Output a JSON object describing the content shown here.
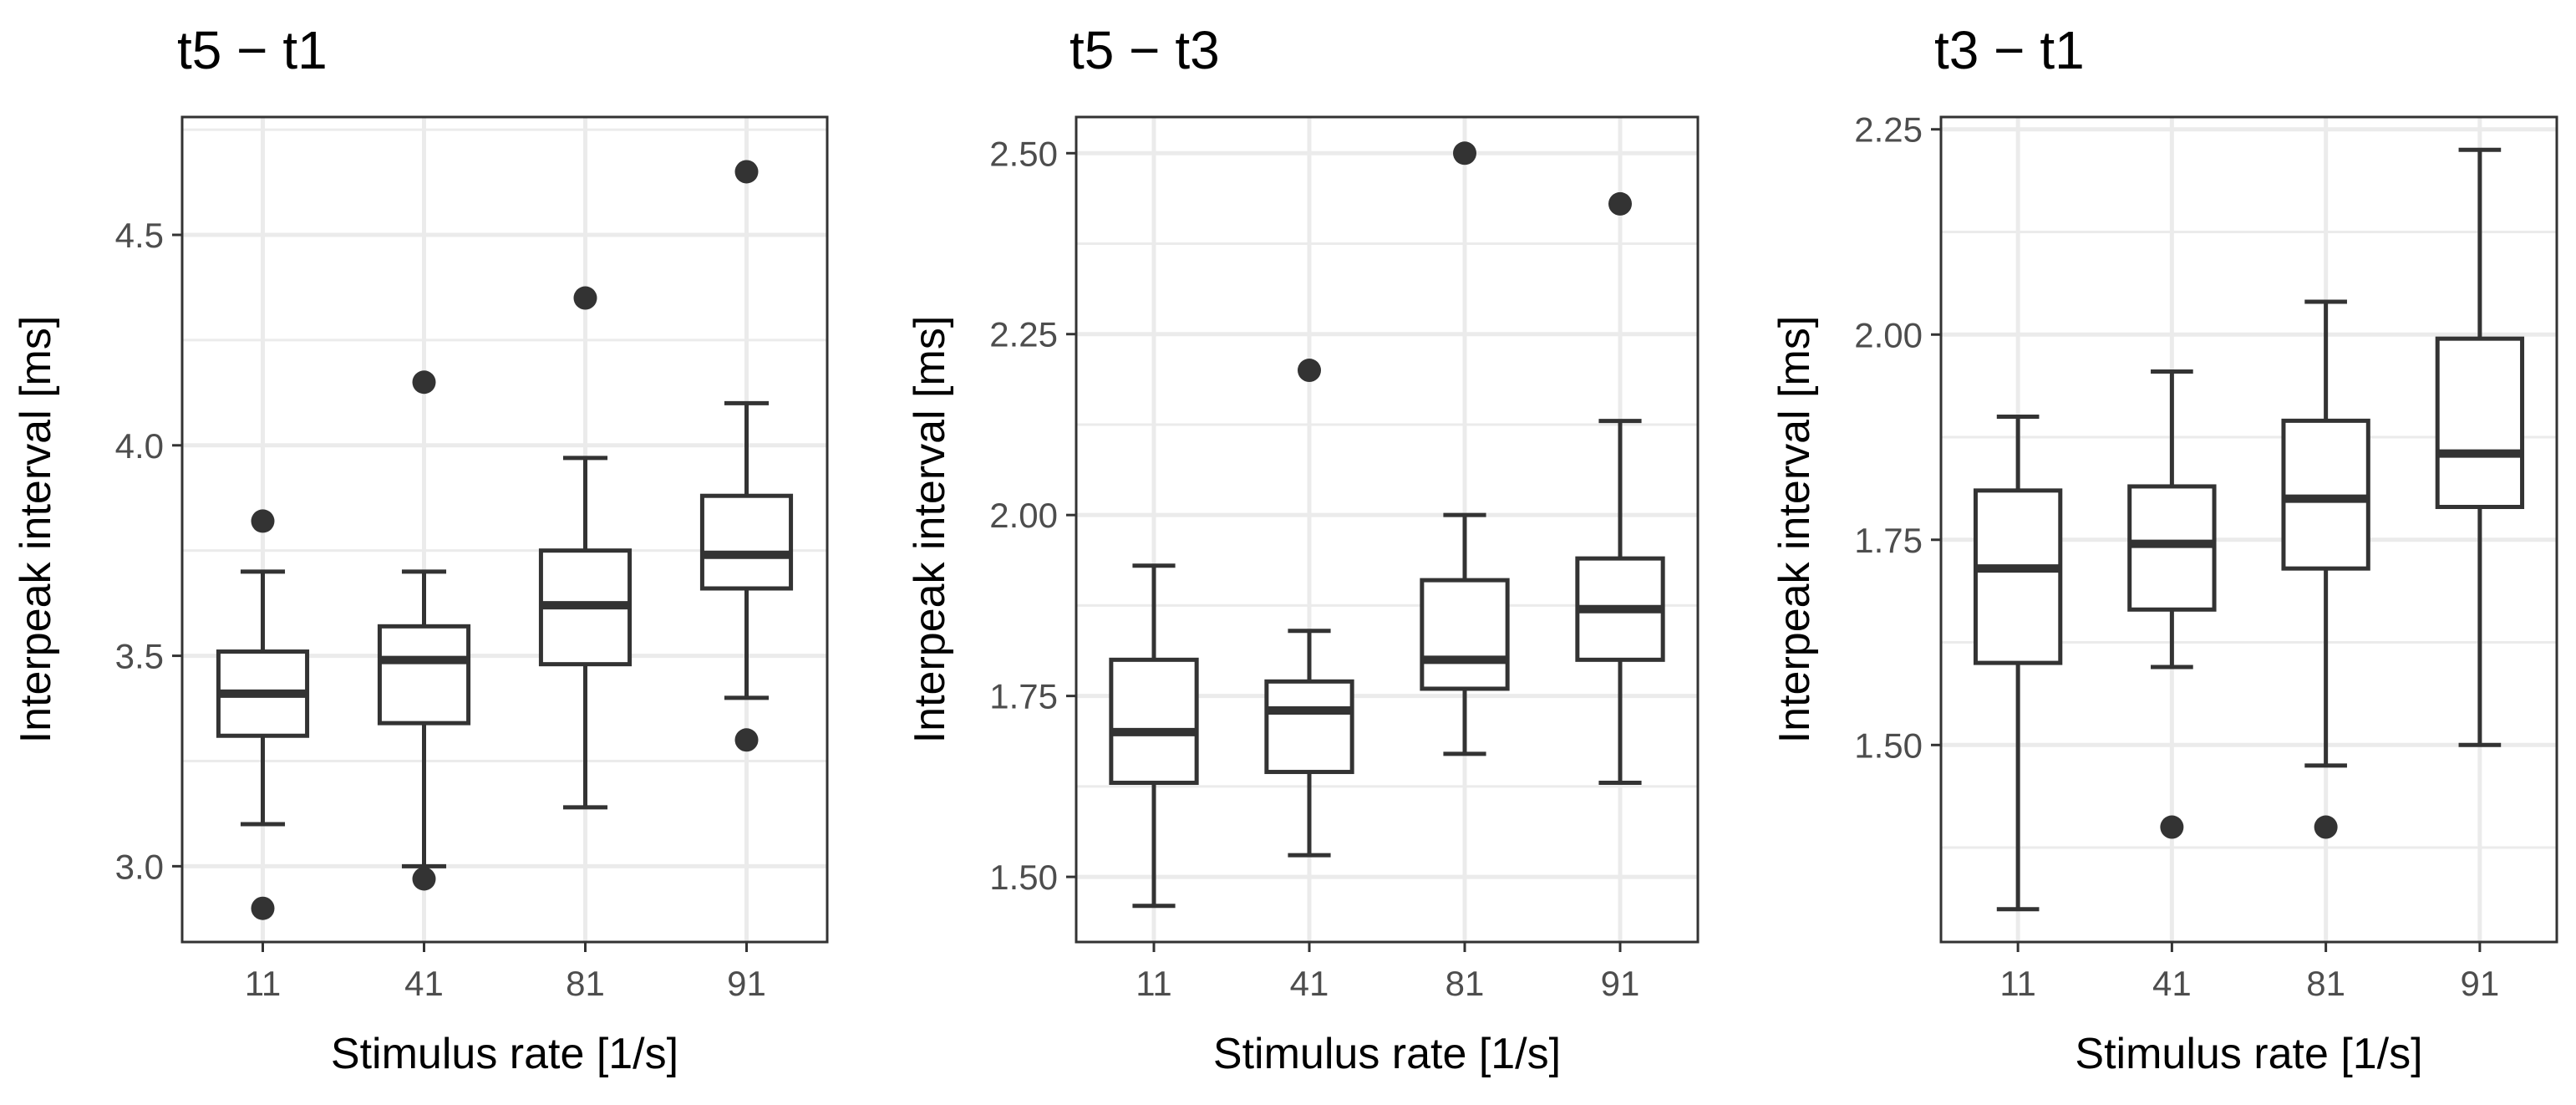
{
  "colors": {
    "background": "#ffffff",
    "panel_border": "#333333",
    "grid": "#ebebeb",
    "box_stroke": "#333333",
    "outlier": "#333333",
    "tick_text": "#4d4d4d",
    "title_text": "#000000"
  },
  "chart_data": [
    {
      "type": "boxplot",
      "title": "t5 − t1",
      "xlabel": "Stimulus rate [1/s]",
      "ylabel": "Interpeak interval [ms]",
      "categories": [
        "11",
        "41",
        "81",
        "91"
      ],
      "ylim": [
        2.82,
        4.78
      ],
      "yticks": [
        3.0,
        3.5,
        4.0,
        4.5
      ],
      "ytick_labels": [
        "3.0",
        "3.5",
        "4.0",
        "4.5"
      ],
      "grid": true,
      "boxes": [
        {
          "category": "11",
          "whisker_low": 3.1,
          "q1": 3.31,
          "median": 3.41,
          "q3": 3.51,
          "whisker_high": 3.7,
          "outliers": [
            3.82,
            2.9
          ]
        },
        {
          "category": "41",
          "whisker_low": 3.0,
          "q1": 3.34,
          "median": 3.49,
          "q3": 3.57,
          "whisker_high": 3.7,
          "outliers": [
            4.15,
            2.97
          ]
        },
        {
          "category": "81",
          "whisker_low": 3.14,
          "q1": 3.48,
          "median": 3.62,
          "q3": 3.75,
          "whisker_high": 3.97,
          "outliers": [
            4.35
          ]
        },
        {
          "category": "91",
          "whisker_low": 3.4,
          "q1": 3.66,
          "median": 3.74,
          "q3": 3.88,
          "whisker_high": 4.1,
          "outliers": [
            4.65,
            3.3
          ]
        }
      ]
    },
    {
      "type": "boxplot",
      "title": "t5 − t3",
      "xlabel": "Stimulus rate [1/s]",
      "ylabel": "Interpeak interval [ms]",
      "categories": [
        "11",
        "41",
        "81",
        "91"
      ],
      "ylim": [
        1.41,
        2.55
      ],
      "yticks": [
        1.5,
        1.75,
        2.0,
        2.25,
        2.5
      ],
      "ytick_labels": [
        "1.50",
        "1.75",
        "2.00",
        "2.25",
        "2.50"
      ],
      "grid": true,
      "boxes": [
        {
          "category": "11",
          "whisker_low": 1.46,
          "q1": 1.63,
          "median": 1.7,
          "q3": 1.8,
          "whisker_high": 1.93,
          "outliers": []
        },
        {
          "category": "41",
          "whisker_low": 1.53,
          "q1": 1.645,
          "median": 1.73,
          "q3": 1.77,
          "whisker_high": 1.84,
          "outliers": [
            2.2
          ]
        },
        {
          "category": "81",
          "whisker_low": 1.67,
          "q1": 1.76,
          "median": 1.8,
          "q3": 1.91,
          "whisker_high": 2.0,
          "outliers": [
            2.5
          ]
        },
        {
          "category": "91",
          "whisker_low": 1.63,
          "q1": 1.8,
          "median": 1.87,
          "q3": 1.94,
          "whisker_high": 2.13,
          "outliers": [
            2.43
          ]
        }
      ]
    },
    {
      "type": "boxplot",
      "title": "t3 − t1",
      "xlabel": "Stimulus rate [1/s]",
      "ylabel": "Interpeak interval [ms]",
      "categories": [
        "11",
        "41",
        "81",
        "91"
      ],
      "ylim": [
        1.26,
        2.265
      ],
      "yticks": [
        1.5,
        1.75,
        2.0,
        2.25
      ],
      "ytick_labels": [
        "1.50",
        "1.75",
        "2.00",
        "2.25"
      ],
      "grid": true,
      "boxes": [
        {
          "category": "11",
          "whisker_low": 1.3,
          "q1": 1.6,
          "median": 1.715,
          "q3": 1.81,
          "whisker_high": 1.9,
          "outliers": []
        },
        {
          "category": "41",
          "whisker_low": 1.595,
          "q1": 1.665,
          "median": 1.745,
          "q3": 1.815,
          "whisker_high": 1.955,
          "outliers": [
            1.4
          ]
        },
        {
          "category": "81",
          "whisker_low": 1.475,
          "q1": 1.715,
          "median": 1.8,
          "q3": 1.895,
          "whisker_high": 2.04,
          "outliers": [
            1.4
          ]
        },
        {
          "category": "91",
          "whisker_low": 1.5,
          "q1": 1.79,
          "median": 1.855,
          "q3": 1.995,
          "whisker_high": 2.225,
          "outliers": []
        }
      ]
    }
  ]
}
